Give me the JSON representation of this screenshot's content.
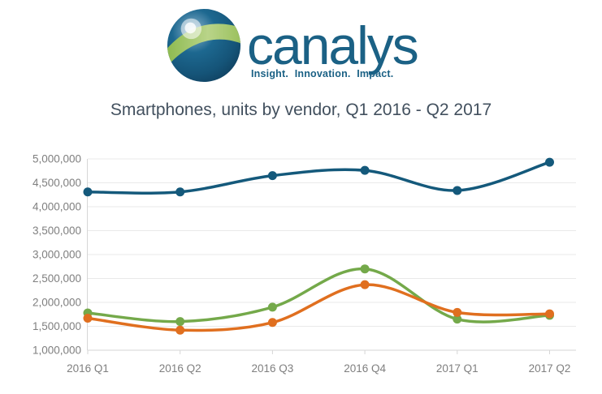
{
  "logo": {
    "brand": "canalys",
    "tagline": "Insight. Innovation. Impact.",
    "colors": {
      "brand_blue": "#1B6185",
      "globe_dark_navy": "#123E5E",
      "globe_mid_blue": "#1D6890",
      "globe_light_blue": "#2A7FA5",
      "leaf_green": "#A3C969"
    }
  },
  "colors": {
    "title_text": "#42505E",
    "axis_text": "#7F7F7F",
    "gridline": "#E9E9E9",
    "axis_line": "#D6D6D6",
    "background": "#FFFFFF"
  },
  "chart_data": {
    "type": "line",
    "title": "Smartphones, units by vendor, Q1 2016 - Q2 2017",
    "xlabel": "",
    "ylabel": "",
    "legend": "none",
    "grid": true,
    "line_style": "smooth",
    "marker": "circle",
    "categories": [
      "2016 Q1",
      "2016 Q2",
      "2016 Q3",
      "2016 Q4",
      "2017 Q1",
      "2017 Q2"
    ],
    "series": [
      {
        "name": "blue",
        "color": "#14597B",
        "values": [
          4310000,
          4310000,
          4650000,
          4760000,
          4340000,
          4930000
        ]
      },
      {
        "name": "green",
        "color": "#74A94A",
        "values": [
          1780000,
          1600000,
          1900000,
          2700000,
          1650000,
          1730000
        ]
      },
      {
        "name": "orange",
        "color": "#E06F1F",
        "values": [
          1670000,
          1420000,
          1580000,
          2370000,
          1790000,
          1760000
        ]
      }
    ],
    "ylim": [
      1000000,
      5000000
    ],
    "ytick_step": 500000,
    "ytick_labels": [
      "5,000,000",
      "4,500,000",
      "4,000,000",
      "3,500,000",
      "3,000,000",
      "2,500,000",
      "2,000,000",
      "1,500,000",
      "1,000,000"
    ]
  }
}
